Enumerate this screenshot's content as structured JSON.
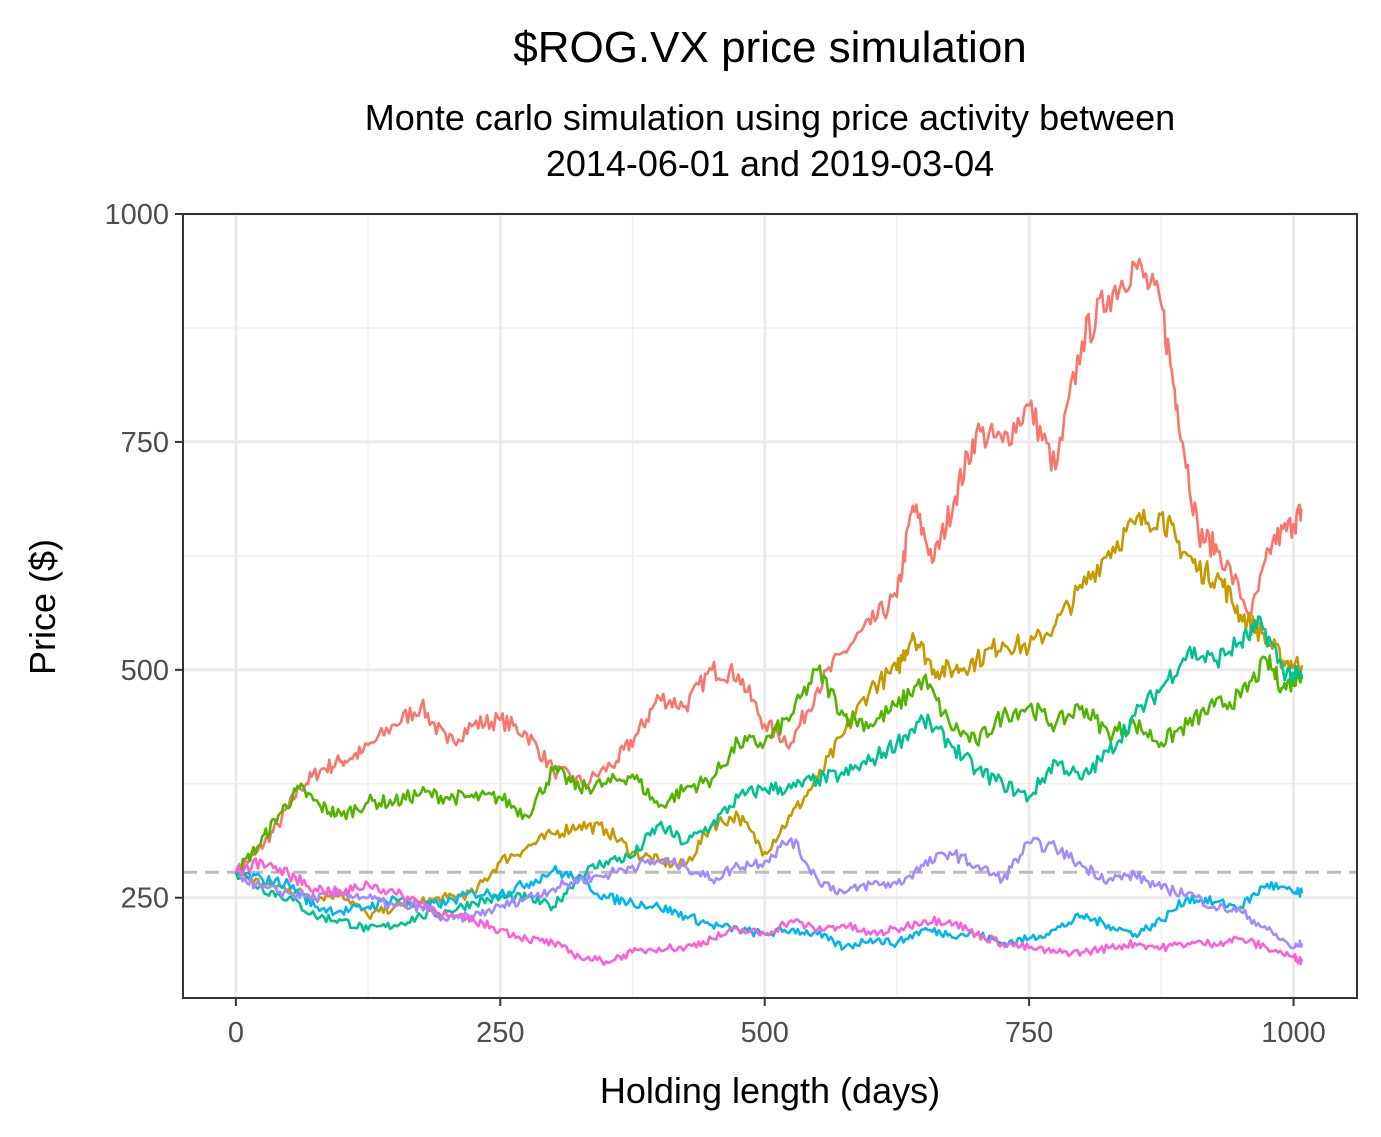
{
  "chart_data": {
    "type": "line",
    "title": "$ROG.VX price simulation",
    "subtitle_lines": [
      "Monte carlo simulation using price activity between",
      "2014-06-01 and 2019-03-04"
    ],
    "xlabel": "Holding length (days)",
    "ylabel": "Price ($)",
    "xlim": [
      -50,
      1060
    ],
    "ylim": [
      140,
      1000
    ],
    "x_ticks": [
      0,
      250,
      500,
      750,
      1000
    ],
    "y_ticks": [
      250,
      500,
      750,
      1000
    ],
    "x_tick_labels": [
      "0",
      "250",
      "500",
      "750",
      "1000"
    ],
    "y_tick_labels": [
      "250",
      "500",
      "750",
      "1000"
    ],
    "grid": true,
    "legend": "none",
    "reference_line": {
      "y": 278,
      "style": "dashed",
      "color": "#bdbdbd"
    },
    "series": [
      {
        "color": "#F8766D",
        "points": [
          [
            0,
            278
          ],
          [
            20,
            300
          ],
          [
            40,
            330
          ],
          [
            60,
            370
          ],
          [
            80,
            390
          ],
          [
            100,
            400
          ],
          [
            120,
            410
          ],
          [
            150,
            440
          ],
          [
            175,
            460
          ],
          [
            200,
            420
          ],
          [
            225,
            440
          ],
          [
            250,
            445
          ],
          [
            275,
            430
          ],
          [
            300,
            390
          ],
          [
            330,
            375
          ],
          [
            360,
            400
          ],
          [
            380,
            430
          ],
          [
            400,
            470
          ],
          [
            425,
            460
          ],
          [
            450,
            500
          ],
          [
            475,
            495
          ],
          [
            500,
            440
          ],
          [
            525,
            420
          ],
          [
            550,
            480
          ],
          [
            575,
            520
          ],
          [
            600,
            550
          ],
          [
            625,
            580
          ],
          [
            640,
            680
          ],
          [
            660,
            620
          ],
          [
            680,
            690
          ],
          [
            700,
            760
          ],
          [
            725,
            750
          ],
          [
            750,
            790
          ],
          [
            775,
            720
          ],
          [
            800,
            860
          ],
          [
            825,
            910
          ],
          [
            850,
            945
          ],
          [
            875,
            900
          ],
          [
            890,
            790
          ],
          [
            910,
            650
          ],
          [
            930,
            630
          ],
          [
            960,
            560
          ],
          [
            980,
            640
          ],
          [
            1000,
            660
          ],
          [
            1008,
            675
          ]
        ]
      },
      {
        "color": "#C49A00",
        "points": [
          [
            0,
            278
          ],
          [
            25,
            265
          ],
          [
            50,
            260
          ],
          [
            75,
            250
          ],
          [
            100,
            255
          ],
          [
            125,
            230
          ],
          [
            150,
            240
          ],
          [
            175,
            245
          ],
          [
            200,
            250
          ],
          [
            225,
            255
          ],
          [
            250,
            290
          ],
          [
            275,
            305
          ],
          [
            300,
            320
          ],
          [
            325,
            330
          ],
          [
            350,
            325
          ],
          [
            375,
            300
          ],
          [
            400,
            290
          ],
          [
            425,
            285
          ],
          [
            450,
            330
          ],
          [
            475,
            340
          ],
          [
            500,
            300
          ],
          [
            525,
            340
          ],
          [
            550,
            380
          ],
          [
            575,
            430
          ],
          [
            600,
            480
          ],
          [
            625,
            500
          ],
          [
            640,
            540
          ],
          [
            660,
            500
          ],
          [
            680,
            500
          ],
          [
            700,
            510
          ],
          [
            725,
            530
          ],
          [
            750,
            525
          ],
          [
            775,
            550
          ],
          [
            800,
            590
          ],
          [
            825,
            630
          ],
          [
            850,
            660
          ],
          [
            875,
            670
          ],
          [
            890,
            640
          ],
          [
            910,
            610
          ],
          [
            930,
            600
          ],
          [
            950,
            560
          ],
          [
            970,
            540
          ],
          [
            990,
            510
          ],
          [
            1008,
            505
          ]
        ]
      },
      {
        "color": "#53B400",
        "points": [
          [
            0,
            278
          ],
          [
            20,
            305
          ],
          [
            40,
            340
          ],
          [
            60,
            370
          ],
          [
            80,
            350
          ],
          [
            100,
            340
          ],
          [
            125,
            355
          ],
          [
            150,
            355
          ],
          [
            175,
            365
          ],
          [
            200,
            360
          ],
          [
            225,
            360
          ],
          [
            250,
            360
          ],
          [
            275,
            340
          ],
          [
            300,
            390
          ],
          [
            325,
            370
          ],
          [
            350,
            375
          ],
          [
            375,
            385
          ],
          [
            400,
            350
          ],
          [
            425,
            370
          ],
          [
            450,
            380
          ],
          [
            475,
            420
          ],
          [
            500,
            420
          ],
          [
            525,
            450
          ],
          [
            550,
            500
          ],
          [
            575,
            450
          ],
          [
            600,
            440
          ],
          [
            625,
            460
          ],
          [
            650,
            490
          ],
          [
            675,
            440
          ],
          [
            700,
            420
          ],
          [
            725,
            450
          ],
          [
            750,
            460
          ],
          [
            775,
            440
          ],
          [
            800,
            460
          ],
          [
            825,
            430
          ],
          [
            850,
            440
          ],
          [
            875,
            420
          ],
          [
            900,
            440
          ],
          [
            925,
            460
          ],
          [
            950,
            470
          ],
          [
            975,
            510
          ],
          [
            990,
            480
          ],
          [
            1008,
            495
          ]
        ]
      },
      {
        "color": "#00C094",
        "points": [
          [
            0,
            278
          ],
          [
            25,
            260
          ],
          [
            50,
            250
          ],
          [
            75,
            230
          ],
          [
            100,
            225
          ],
          [
            125,
            215
          ],
          [
            150,
            220
          ],
          [
            175,
            230
          ],
          [
            200,
            235
          ],
          [
            225,
            245
          ],
          [
            250,
            250
          ],
          [
            275,
            250
          ],
          [
            300,
            240
          ],
          [
            325,
            275
          ],
          [
            350,
            290
          ],
          [
            375,
            295
          ],
          [
            400,
            330
          ],
          [
            425,
            310
          ],
          [
            450,
            330
          ],
          [
            475,
            360
          ],
          [
            500,
            370
          ],
          [
            525,
            370
          ],
          [
            550,
            380
          ],
          [
            575,
            385
          ],
          [
            600,
            400
          ],
          [
            625,
            420
          ],
          [
            650,
            445
          ],
          [
            675,
            420
          ],
          [
            700,
            390
          ],
          [
            725,
            375
          ],
          [
            750,
            360
          ],
          [
            775,
            400
          ],
          [
            800,
            380
          ],
          [
            825,
            410
          ],
          [
            850,
            450
          ],
          [
            875,
            480
          ],
          [
            900,
            520
          ],
          [
            925,
            510
          ],
          [
            950,
            530
          ],
          [
            970,
            550
          ],
          [
            990,
            500
          ],
          [
            1008,
            490
          ]
        ]
      },
      {
        "color": "#00B6EB",
        "points": [
          [
            0,
            278
          ],
          [
            25,
            270
          ],
          [
            50,
            265
          ],
          [
            75,
            240
          ],
          [
            100,
            235
          ],
          [
            125,
            240
          ],
          [
            150,
            250
          ],
          [
            175,
            240
          ],
          [
            200,
            245
          ],
          [
            225,
            255
          ],
          [
            250,
            255
          ],
          [
            275,
            265
          ],
          [
            300,
            280
          ],
          [
            325,
            270
          ],
          [
            350,
            250
          ],
          [
            375,
            245
          ],
          [
            400,
            240
          ],
          [
            425,
            230
          ],
          [
            450,
            220
          ],
          [
            475,
            215
          ],
          [
            500,
            210
          ],
          [
            525,
            215
          ],
          [
            550,
            210
          ],
          [
            575,
            195
          ],
          [
            600,
            205
          ],
          [
            625,
            200
          ],
          [
            650,
            215
          ],
          [
            675,
            210
          ],
          [
            700,
            210
          ],
          [
            725,
            200
          ],
          [
            750,
            205
          ],
          [
            775,
            215
          ],
          [
            800,
            230
          ],
          [
            825,
            220
          ],
          [
            850,
            210
          ],
          [
            875,
            225
          ],
          [
            900,
            250
          ],
          [
            925,
            245
          ],
          [
            950,
            240
          ],
          [
            975,
            265
          ],
          [
            1000,
            255
          ],
          [
            1008,
            255
          ]
        ]
      },
      {
        "color": "#A58AFF",
        "points": [
          [
            0,
            278
          ],
          [
            25,
            260
          ],
          [
            50,
            255
          ],
          [
            75,
            250
          ],
          [
            100,
            255
          ],
          [
            125,
            250
          ],
          [
            150,
            240
          ],
          [
            175,
            240
          ],
          [
            200,
            225
          ],
          [
            225,
            230
          ],
          [
            250,
            240
          ],
          [
            275,
            250
          ],
          [
            300,
            260
          ],
          [
            325,
            270
          ],
          [
            350,
            275
          ],
          [
            375,
            285
          ],
          [
            400,
            290
          ],
          [
            425,
            285
          ],
          [
            450,
            270
          ],
          [
            475,
            285
          ],
          [
            500,
            290
          ],
          [
            525,
            315
          ],
          [
            550,
            270
          ],
          [
            575,
            255
          ],
          [
            600,
            265
          ],
          [
            625,
            265
          ],
          [
            650,
            285
          ],
          [
            675,
            300
          ],
          [
            700,
            285
          ],
          [
            725,
            270
          ],
          [
            750,
            310
          ],
          [
            775,
            305
          ],
          [
            800,
            285
          ],
          [
            825,
            270
          ],
          [
            850,
            275
          ],
          [
            875,
            260
          ],
          [
            900,
            255
          ],
          [
            925,
            240
          ],
          [
            950,
            235
          ],
          [
            975,
            215
          ],
          [
            1000,
            195
          ],
          [
            1008,
            200
          ]
        ]
      },
      {
        "color": "#FB61D7",
        "points": [
          [
            0,
            278
          ],
          [
            25,
            290
          ],
          [
            50,
            275
          ],
          [
            75,
            260
          ],
          [
            100,
            255
          ],
          [
            125,
            265
          ],
          [
            150,
            255
          ],
          [
            175,
            245
          ],
          [
            200,
            230
          ],
          [
            225,
            225
          ],
          [
            250,
            215
          ],
          [
            275,
            205
          ],
          [
            300,
            200
          ],
          [
            325,
            185
          ],
          [
            350,
            180
          ],
          [
            375,
            190
          ],
          [
            400,
            195
          ],
          [
            425,
            195
          ],
          [
            450,
            205
          ],
          [
            475,
            215
          ],
          [
            500,
            210
          ],
          [
            525,
            225
          ],
          [
            550,
            215
          ],
          [
            575,
            220
          ],
          [
            600,
            210
          ],
          [
            625,
            215
          ],
          [
            650,
            225
          ],
          [
            675,
            225
          ],
          [
            700,
            210
          ],
          [
            725,
            200
          ],
          [
            750,
            195
          ],
          [
            775,
            190
          ],
          [
            800,
            190
          ],
          [
            825,
            195
          ],
          [
            850,
            200
          ],
          [
            875,
            195
          ],
          [
            900,
            200
          ],
          [
            925,
            200
          ],
          [
            950,
            205
          ],
          [
            975,
            195
          ],
          [
            1000,
            185
          ],
          [
            1008,
            180
          ]
        ]
      }
    ]
  }
}
